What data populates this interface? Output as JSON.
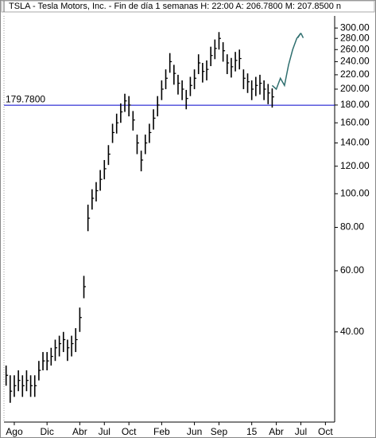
{
  "chart_data": {
    "type": "hlc",
    "title": "TSLA - Tesla Motors, Inc. - Fin de día 1 semanas  H: 22:00  A: 206.7800  M: 207.8500  n",
    "log_scale": true,
    "ylim": [
      22,
      325
    ],
    "yticks": [
      {
        "value": 300,
        "label": "300.00"
      },
      {
        "value": 280,
        "label": "280.00"
      },
      {
        "value": 260,
        "label": "260.00"
      },
      {
        "value": 240,
        "label": "240.00"
      },
      {
        "value": 220,
        "label": "220.00"
      },
      {
        "value": 200,
        "label": "200.00"
      },
      {
        "value": 180,
        "label": "180.00"
      },
      {
        "value": 160,
        "label": "160.00"
      },
      {
        "value": 140,
        "label": "140.00"
      },
      {
        "value": 120,
        "label": "120.00"
      },
      {
        "value": 100,
        "label": "100.00"
      },
      {
        "value": 80,
        "label": "80.00"
      },
      {
        "value": 60,
        "label": "60.00"
      },
      {
        "value": 40,
        "label": "40.00"
      }
    ],
    "categories": [
      null,
      null,
      "Ago",
      null,
      null,
      null,
      null,
      null,
      null,
      null,
      "Dic",
      null,
      null,
      null,
      null,
      null,
      null,
      null,
      "Abr",
      null,
      null,
      null,
      null,
      null,
      "Jul",
      null,
      null,
      null,
      null,
      null,
      "Oct",
      null,
      null,
      null,
      null,
      null,
      null,
      null,
      "Feb",
      null,
      null,
      null,
      null,
      null,
      null,
      null,
      "Jun",
      null,
      null,
      null,
      null,
      null,
      "Sep",
      null,
      null,
      null,
      null,
      null,
      null,
      null,
      "15",
      null,
      null,
      null,
      null,
      null,
      "Abr",
      null,
      null,
      null,
      null,
      null,
      "Jul",
      null,
      null,
      null,
      null,
      null,
      "Oct",
      null
    ],
    "color": "#000000",
    "high": [
      32,
      30,
      30,
      31,
      30,
      31,
      30,
      30,
      33,
      35,
      35,
      36,
      38,
      39,
      40,
      38,
      39,
      41,
      47,
      58,
      93,
      103,
      108,
      117,
      125,
      138,
      159,
      170,
      182,
      194,
      191,
      173,
      148,
      133,
      148,
      159,
      175,
      191,
      212,
      228,
      254,
      235,
      220,
      212,
      199,
      217,
      228,
      252,
      238,
      242,
      265,
      278,
      292,
      273,
      252,
      246,
      256,
      260,
      228,
      222,
      212,
      217,
      220,
      212,
      207,
      201,
      null,
      null,
      null,
      null,
      null,
      null,
      null,
      null,
      null,
      null,
      null,
      null,
      null,
      null
    ],
    "low": [
      28,
      25,
      26,
      27,
      26,
      27,
      26,
      26,
      29,
      31,
      31,
      32,
      33,
      34,
      35,
      33,
      34,
      35,
      40,
      50,
      78,
      90,
      95,
      102,
      110,
      121,
      140,
      149,
      160,
      172,
      167,
      152,
      130,
      116,
      130,
      140,
      153,
      167,
      186,
      200,
      223,
      206,
      193,
      186,
      175,
      191,
      200,
      221,
      209,
      212,
      233,
      244,
      260,
      240,
      221,
      216,
      225,
      228,
      200,
      195,
      186,
      191,
      193,
      186,
      181,
      177,
      null,
      null,
      null,
      null,
      null,
      null,
      null,
      null,
      null,
      null,
      null,
      null,
      null,
      null
    ],
    "close": [
      30,
      27,
      28,
      29,
      28,
      29,
      28,
      28,
      31,
      33,
      33,
      34,
      36,
      37,
      38,
      36,
      37,
      38,
      44,
      54,
      85,
      97,
      102,
      110,
      118,
      130,
      150,
      160,
      172,
      185,
      180,
      163,
      140,
      125,
      140,
      150,
      165,
      180,
      200,
      215,
      240,
      222,
      208,
      200,
      188,
      205,
      215,
      238,
      225,
      228,
      250,
      262,
      280,
      258,
      238,
      232,
      242,
      245,
      215,
      210,
      200,
      205,
      208,
      200,
      195,
      190,
      null,
      null,
      null,
      null,
      null,
      null,
      null,
      null,
      null,
      null,
      null,
      null,
      null,
      null
    ],
    "projection": {
      "color": "#2f6f6f",
      "values": [
        null,
        null,
        null,
        null,
        null,
        null,
        null,
        null,
        null,
        null,
        null,
        null,
        null,
        null,
        null,
        null,
        null,
        null,
        null,
        null,
        null,
        null,
        null,
        null,
        null,
        null,
        null,
        null,
        null,
        null,
        null,
        null,
        null,
        null,
        null,
        null,
        null,
        null,
        null,
        null,
        null,
        null,
        null,
        null,
        null,
        null,
        null,
        null,
        null,
        null,
        null,
        null,
        null,
        null,
        null,
        null,
        null,
        null,
        null,
        null,
        null,
        null,
        null,
        null,
        null,
        205,
        200,
        215,
        205,
        235,
        260,
        280,
        290,
        null,
        null,
        null,
        null,
        null,
        null,
        null
      ]
    },
    "reference_line": {
      "value": 179.78,
      "label": "179.7800",
      "color": "#0000cc"
    }
  }
}
